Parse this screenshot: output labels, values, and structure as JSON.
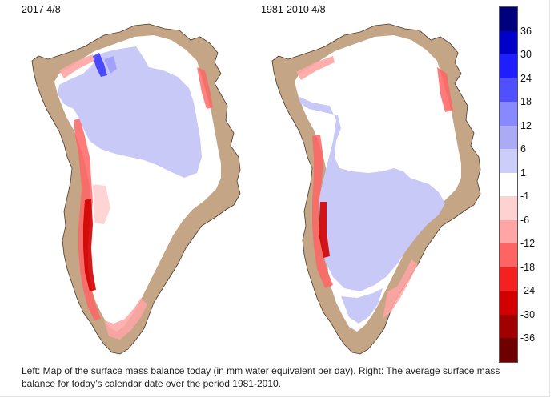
{
  "maps": {
    "left": {
      "title": "2017 4/8"
    },
    "right": {
      "title": "1981-2010 4/8"
    }
  },
  "legend": {
    "bins": [
      {
        "label": "36",
        "color": "#00007f"
      },
      {
        "label": "30",
        "color": "#0000c8"
      },
      {
        "label": "24",
        "color": "#1e1eff"
      },
      {
        "label": "18",
        "color": "#5050ff"
      },
      {
        "label": "12",
        "color": "#8888ff"
      },
      {
        "label": "6",
        "color": "#aaaaf5"
      },
      {
        "label": "1",
        "color": "#cdcdfa"
      },
      {
        "label": "-1",
        "color": "#ffffff"
      },
      {
        "label": "-6",
        "color": "#ffd2d2"
      },
      {
        "label": "-12",
        "color": "#ffa5a5"
      },
      {
        "label": "-18",
        "color": "#ff6464"
      },
      {
        "label": "-24",
        "color": "#f52020"
      },
      {
        "label": "-30",
        "color": "#d20000"
      },
      {
        "label": "-36",
        "color": "#a00000"
      },
      {
        "label": "",
        "color": "#6e0000"
      }
    ]
  },
  "colors": {
    "land": "#c4a585",
    "coast": "#4a3a2c",
    "interior_positive": "#c9c9f7",
    "snow": "#ffffff"
  },
  "caption": "Left: Map of the surface mass balance today (in mm water equivalent per day). Right: The average surface mass balance for today’s calendar date over the period 1981-2010."
}
